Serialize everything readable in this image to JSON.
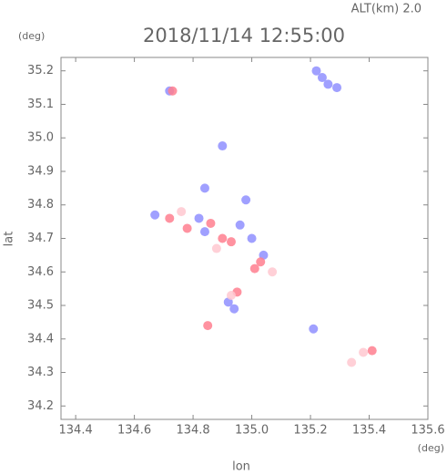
{
  "chart_data": {
    "type": "scatter",
    "title": "2018/11/14 12:55:00",
    "subtitle": "ALT(km) 2.0",
    "x_label": "lon",
    "y_label": "lat",
    "x_unit": "(deg)",
    "y_unit": "(deg)",
    "xlim": [
      134.35,
      135.6
    ],
    "ylim": [
      34.16,
      35.24
    ],
    "xticks": [
      134.4,
      134.6,
      134.8,
      {
        "value": 135,
        "label": "135.0"
      },
      135.2,
      135.4,
      135.6
    ],
    "yticks": [
      34.2,
      34.3,
      34.4,
      34.5,
      34.6,
      34.7,
      34.8,
      34.9,
      {
        "value": 35,
        "label": "35.0"
      },
      35.1,
      35.2
    ],
    "series": [
      {
        "color": "#8f8fff",
        "x": [
          135.22,
          135.24,
          135.26,
          135.29,
          134.9,
          134.72,
          134.67,
          134.82,
          134.84,
          134.96,
          134.98,
          135.04,
          134.92,
          134.94,
          135.21,
          134.84,
          135.0
        ],
        "y": [
          35.2,
          35.18,
          35.16,
          35.15,
          34.976,
          35.14,
          34.77,
          34.76,
          34.85,
          34.74,
          34.815,
          34.65,
          34.51,
          34.49,
          34.43,
          34.72,
          34.7
        ]
      },
      {
        "color": "#ff7f8f",
        "x": [
          134.73,
          134.72,
          134.86,
          134.93,
          135.01,
          134.95,
          134.85,
          135.41,
          134.78,
          134.9,
          135.03
        ],
        "y": [
          35.14,
          34.76,
          34.745,
          34.69,
          34.61,
          34.54,
          34.44,
          34.365,
          34.73,
          34.7,
          34.63
        ]
      },
      {
        "color": "#ffc8d0",
        "x": [
          135.34,
          135.38,
          134.93,
          135.07,
          134.76,
          134.88
        ],
        "y": [
          34.33,
          34.36,
          34.53,
          34.6,
          34.78,
          34.67
        ]
      }
    ]
  }
}
